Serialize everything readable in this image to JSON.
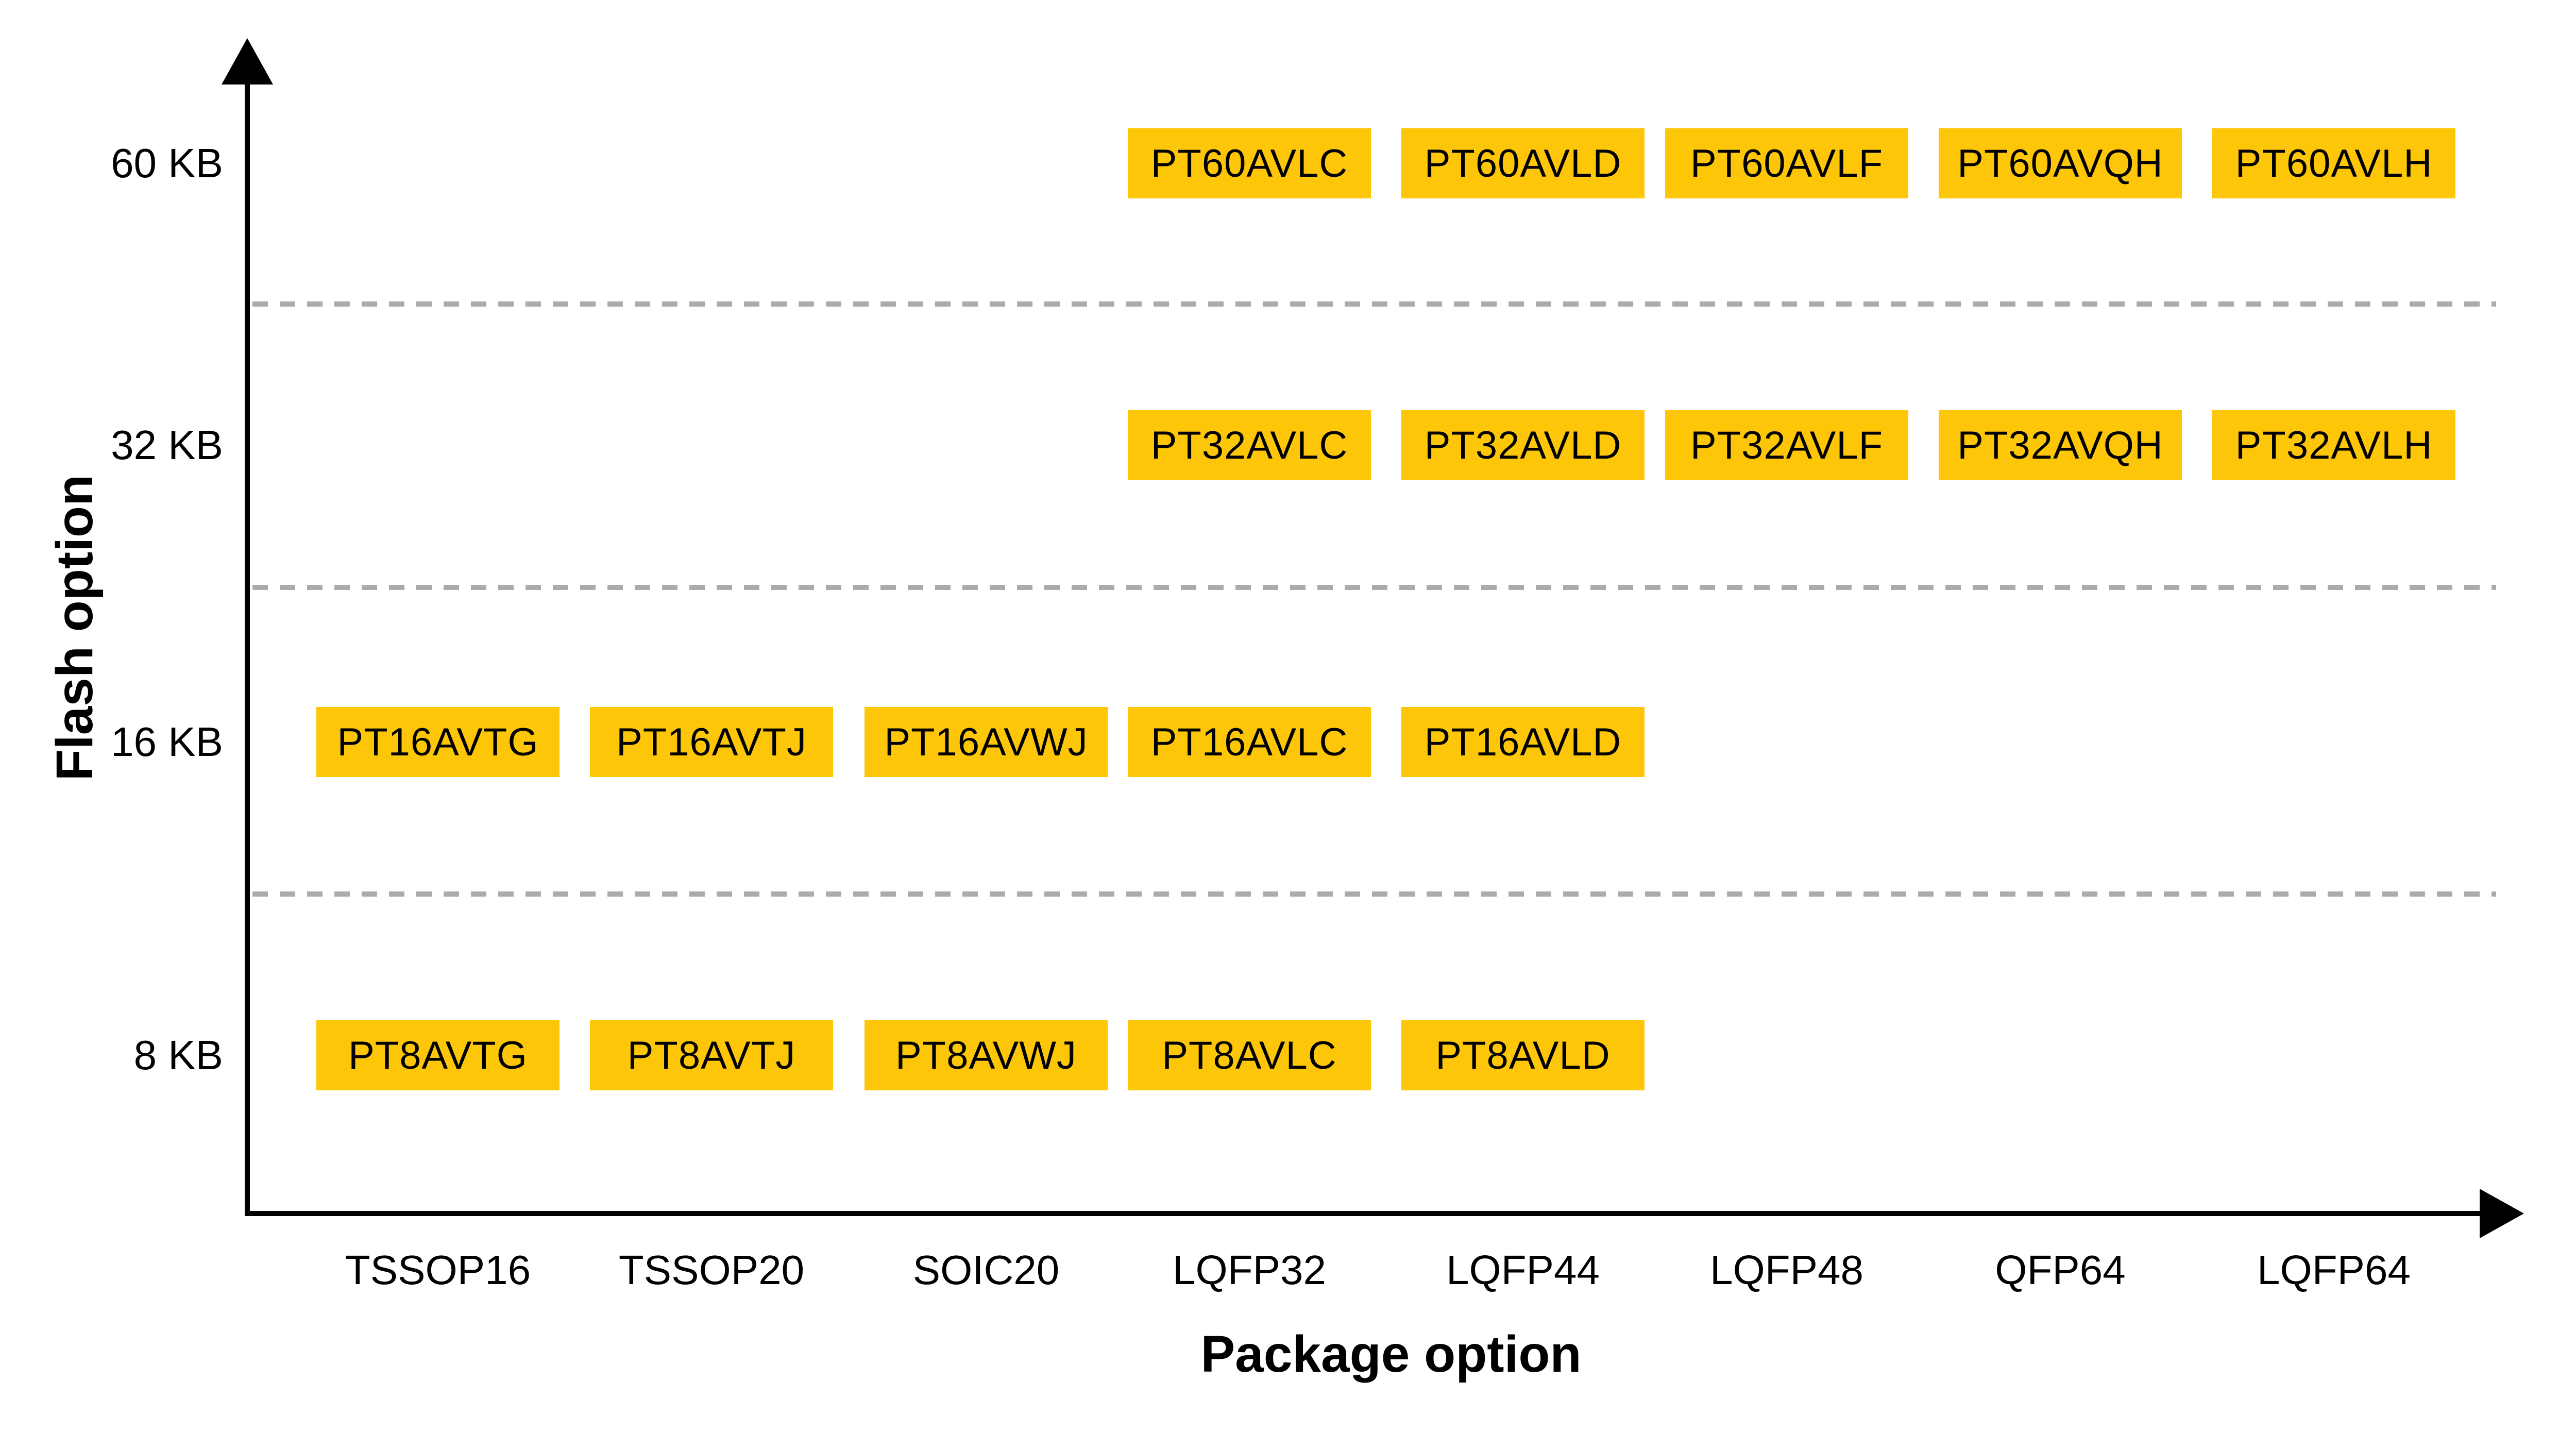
{
  "figure": {
    "background": "#FFFFFF"
  },
  "chart_data": {
    "type": "matrix",
    "title": "",
    "xlabel": "Package option",
    "ylabel": "Flash option",
    "x_categories": [
      "TSSOP16",
      "TSSOP20",
      "SOIC20",
      "LQFP32",
      "LQFP44",
      "LQFP48",
      "QFP64",
      "LQFP64"
    ],
    "y_categories": [
      "8 KB",
      "16 KB",
      "32 KB",
      "60 KB"
    ],
    "grid": "dashed horizontal separators between flash tiers",
    "legend": "none",
    "colors": {
      "box_fill": "#FDC608",
      "box_text": "#000000",
      "axis": "#000000",
      "gridline": "#ABABAB"
    },
    "cells": [
      {
        "part": "PT60AVLC",
        "package": "LQFP32",
        "flash": "60 KB"
      },
      {
        "part": "PT60AVLD",
        "package": "LQFP44",
        "flash": "60 KB"
      },
      {
        "part": "PT60AVLF",
        "package": "LQFP48",
        "flash": "60 KB"
      },
      {
        "part": "PT60AVQH",
        "package": "QFP64",
        "flash": "60 KB"
      },
      {
        "part": "PT60AVLH",
        "package": "LQFP64",
        "flash": "60 KB"
      },
      {
        "part": "PT32AVLC",
        "package": "LQFP32",
        "flash": "32 KB"
      },
      {
        "part": "PT32AVLD",
        "package": "LQFP44",
        "flash": "32 KB"
      },
      {
        "part": "PT32AVLF",
        "package": "LQFP48",
        "flash": "32 KB"
      },
      {
        "part": "PT32AVQH",
        "package": "QFP64",
        "flash": "32 KB"
      },
      {
        "part": "PT32AVLH",
        "package": "LQFP64",
        "flash": "32 KB"
      },
      {
        "part": "PT16AVTG",
        "package": "TSSOP16",
        "flash": "16 KB"
      },
      {
        "part": "PT16AVTJ",
        "package": "TSSOP20",
        "flash": "16 KB"
      },
      {
        "part": "PT16AVWJ",
        "package": "SOIC20",
        "flash": "16 KB"
      },
      {
        "part": "PT16AVLC",
        "package": "LQFP32",
        "flash": "16 KB"
      },
      {
        "part": "PT16AVLD",
        "package": "LQFP44",
        "flash": "16 KB"
      },
      {
        "part": "PT8AVTG",
        "package": "TSSOP16",
        "flash": "8 KB"
      },
      {
        "part": "PT8AVTJ",
        "package": "TSSOP20",
        "flash": "8 KB"
      },
      {
        "part": "PT8AVWJ",
        "package": "SOIC20",
        "flash": "8 KB"
      },
      {
        "part": "PT8AVLC",
        "package": "LQFP32",
        "flash": "8 KB"
      },
      {
        "part": "PT8AVLD",
        "package": "LQFP44",
        "flash": "8 KB"
      }
    ]
  }
}
